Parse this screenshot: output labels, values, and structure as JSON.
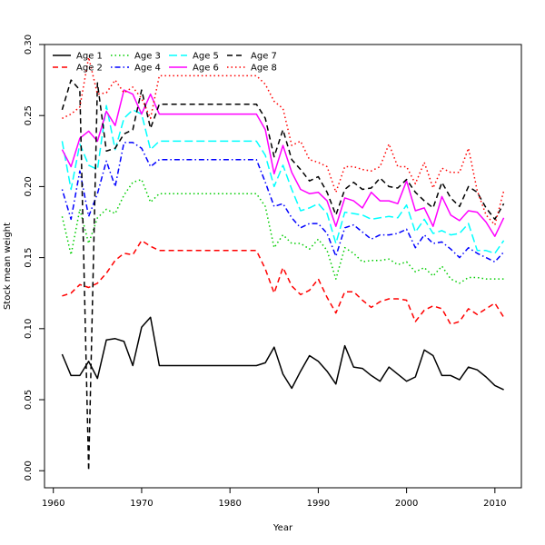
{
  "chart_data": {
    "type": "line",
    "title": "",
    "xlabel": "Year",
    "ylabel": "Stock mean weight",
    "xlim": [
      1959,
      2013
    ],
    "ylim": [
      -0.012,
      0.3
    ],
    "x_ticks": [
      1960,
      1970,
      1980,
      1990,
      2000,
      2010
    ],
    "y_ticks": [
      0.0,
      0.05,
      0.1,
      0.15,
      0.2,
      0.25,
      0.3
    ],
    "y_tick_labels": [
      "0.00",
      "0.05",
      "0.10",
      "0.15",
      "0.20",
      "0.25",
      "0.30"
    ],
    "grid": false,
    "legend_position": "top-left",
    "x": [
      1961,
      1962,
      1963,
      1964,
      1965,
      1966,
      1967,
      1968,
      1969,
      1970,
      1971,
      1972,
      1973,
      1974,
      1975,
      1976,
      1977,
      1978,
      1979,
      1980,
      1981,
      1982,
      1983,
      1984,
      1985,
      1986,
      1987,
      1988,
      1989,
      1990,
      1991,
      1992,
      1993,
      1994,
      1995,
      1996,
      1997,
      1998,
      1999,
      2000,
      2001,
      2002,
      2003,
      2004,
      2005,
      2006,
      2007,
      2008,
      2009,
      2010,
      2011
    ],
    "series": [
      {
        "name": "Age 1",
        "color": "#000000",
        "dash": "solid",
        "values": [
          0.082,
          0.067,
          0.067,
          0.077,
          0.065,
          0.092,
          0.093,
          0.091,
          0.074,
          0.101,
          0.108,
          0.074,
          0.074,
          0.074,
          0.074,
          0.074,
          0.074,
          0.074,
          0.074,
          0.074,
          0.074,
          0.074,
          0.074,
          0.076,
          0.087,
          0.068,
          0.058,
          0.07,
          0.081,
          0.077,
          0.07,
          0.061,
          0.088,
          0.073,
          0.072,
          0.067,
          0.063,
          0.073,
          0.068,
          0.063,
          0.066,
          0.085,
          0.081,
          0.067,
          0.067,
          0.064,
          0.073,
          0.071,
          0.066,
          0.06,
          0.057
        ]
      },
      {
        "name": "Age 2",
        "color": "#ff0000",
        "dash": "dashed",
        "values": [
          0.123,
          0.125,
          0.131,
          0.129,
          0.132,
          0.139,
          0.148,
          0.153,
          0.152,
          0.162,
          0.158,
          0.155,
          0.155,
          0.155,
          0.155,
          0.155,
          0.155,
          0.155,
          0.155,
          0.155,
          0.155,
          0.155,
          0.155,
          0.142,
          0.125,
          0.143,
          0.13,
          0.124,
          0.127,
          0.135,
          0.122,
          0.111,
          0.126,
          0.126,
          0.12,
          0.115,
          0.119,
          0.121,
          0.121,
          0.12,
          0.105,
          0.113,
          0.116,
          0.114,
          0.103,
          0.105,
          0.114,
          0.11,
          0.114,
          0.118,
          0.108
        ]
      },
      {
        "name": "Age 3",
        "color": "#00cd00",
        "dash": "dotted",
        "values": [
          0.179,
          0.152,
          0.184,
          0.16,
          0.178,
          0.184,
          0.181,
          0.194,
          0.203,
          0.205,
          0.189,
          0.195,
          0.195,
          0.195,
          0.195,
          0.195,
          0.195,
          0.195,
          0.195,
          0.195,
          0.195,
          0.195,
          0.195,
          0.186,
          0.157,
          0.166,
          0.16,
          0.16,
          0.156,
          0.163,
          0.155,
          0.135,
          0.157,
          0.153,
          0.147,
          0.148,
          0.148,
          0.149,
          0.145,
          0.147,
          0.14,
          0.143,
          0.137,
          0.144,
          0.135,
          0.132,
          0.136,
          0.136,
          0.135,
          0.135,
          0.135
        ]
      },
      {
        "name": "Age 4",
        "color": "#0000ff",
        "dash": "dashdot",
        "values": [
          0.198,
          0.177,
          0.211,
          0.179,
          0.195,
          0.218,
          0.2,
          0.231,
          0.231,
          0.227,
          0.214,
          0.219,
          0.219,
          0.219,
          0.219,
          0.219,
          0.219,
          0.219,
          0.219,
          0.219,
          0.219,
          0.219,
          0.219,
          0.203,
          0.186,
          0.188,
          0.178,
          0.171,
          0.174,
          0.174,
          0.167,
          0.151,
          0.171,
          0.173,
          0.168,
          0.163,
          0.166,
          0.166,
          0.167,
          0.17,
          0.157,
          0.166,
          0.16,
          0.161,
          0.156,
          0.15,
          0.157,
          0.153,
          0.15,
          0.147,
          0.154
        ]
      },
      {
        "name": "Age 5",
        "color": "#00ffff",
        "dash": "longdash",
        "values": [
          0.232,
          0.198,
          0.23,
          0.215,
          0.212,
          0.257,
          0.226,
          0.248,
          0.254,
          0.251,
          0.226,
          0.232,
          0.232,
          0.232,
          0.232,
          0.232,
          0.232,
          0.232,
          0.232,
          0.232,
          0.232,
          0.232,
          0.232,
          0.222,
          0.2,
          0.215,
          0.198,
          0.183,
          0.185,
          0.188,
          0.181,
          0.16,
          0.182,
          0.181,
          0.18,
          0.177,
          0.178,
          0.179,
          0.178,
          0.187,
          0.168,
          0.177,
          0.167,
          0.169,
          0.166,
          0.167,
          0.174,
          0.155,
          0.155,
          0.153,
          0.162
        ]
      },
      {
        "name": "Age 6",
        "color": "#ff00ff",
        "dash": "solid",
        "values": [
          0.226,
          0.214,
          0.234,
          0.239,
          0.232,
          0.253,
          0.243,
          0.268,
          0.265,
          0.251,
          0.265,
          0.251,
          0.251,
          0.251,
          0.251,
          0.251,
          0.251,
          0.251,
          0.251,
          0.251,
          0.251,
          0.251,
          0.251,
          0.24,
          0.209,
          0.229,
          0.21,
          0.198,
          0.195,
          0.196,
          0.19,
          0.172,
          0.192,
          0.19,
          0.185,
          0.196,
          0.19,
          0.19,
          0.188,
          0.204,
          0.183,
          0.185,
          0.172,
          0.193,
          0.18,
          0.176,
          0.183,
          0.182,
          0.175,
          0.165,
          0.178
        ]
      },
      {
        "name": "Age 7",
        "color": "#000000",
        "dash": "dashed",
        "values": [
          0.254,
          0.275,
          0.268,
          0.0,
          0.273,
          0.225,
          0.227,
          0.237,
          0.24,
          0.268,
          0.241,
          0.258,
          0.258,
          0.258,
          0.258,
          0.258,
          0.258,
          0.258,
          0.258,
          0.258,
          0.258,
          0.258,
          0.258,
          0.248,
          0.221,
          0.24,
          0.219,
          0.212,
          0.204,
          0.207,
          0.196,
          0.18,
          0.198,
          0.203,
          0.198,
          0.199,
          0.206,
          0.2,
          0.199,
          0.205,
          0.196,
          0.19,
          0.185,
          0.203,
          0.192,
          0.186,
          0.2,
          0.196,
          0.185,
          0.177,
          0.188
        ]
      },
      {
        "name": "Age 8",
        "color": "#ff0000",
        "dash": "dotted",
        "values": [
          0.248,
          0.251,
          0.256,
          0.291,
          0.265,
          0.266,
          0.275,
          0.266,
          0.27,
          0.262,
          0.248,
          0.278,
          0.278,
          0.278,
          0.278,
          0.278,
          0.278,
          0.278,
          0.278,
          0.278,
          0.278,
          0.278,
          0.278,
          0.272,
          0.26,
          0.255,
          0.229,
          0.232,
          0.219,
          0.217,
          0.214,
          0.196,
          0.214,
          0.214,
          0.212,
          0.211,
          0.214,
          0.23,
          0.214,
          0.214,
          0.202,
          0.217,
          0.199,
          0.213,
          0.21,
          0.21,
          0.227,
          0.197,
          0.18,
          0.173,
          0.197
        ]
      }
    ]
  }
}
